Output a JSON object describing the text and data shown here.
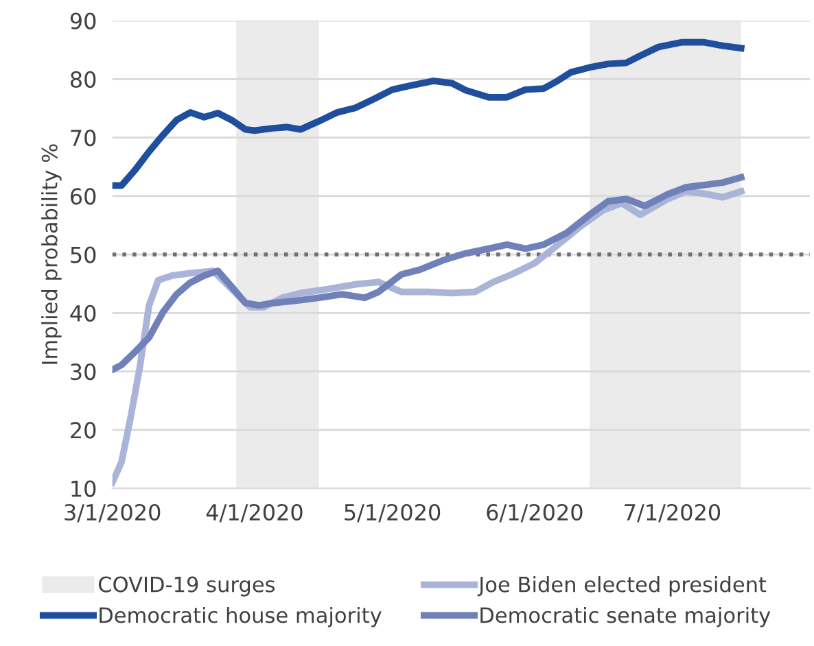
{
  "chart_data": {
    "type": "line",
    "ylabel": "Implied probability %",
    "xlim": [
      "2020-03-01",
      "2020-07-31"
    ],
    "ylim": [
      10,
      90
    ],
    "xticks": [
      {
        "value": "2020-03-01",
        "label": "3/1/2020"
      },
      {
        "value": "2020-04-01",
        "label": "4/1/2020"
      },
      {
        "value": "2020-05-01",
        "label": "5/1/2020"
      },
      {
        "value": "2020-06-01",
        "label": "6/1/2020"
      },
      {
        "value": "2020-07-01",
        "label": "7/1/2020"
      }
    ],
    "yticks": [
      10,
      20,
      30,
      40,
      50,
      60,
      70,
      80,
      90
    ],
    "grid": "y",
    "legend": "bottom",
    "line_style": "solid",
    "marker": "none",
    "series": [
      {
        "name": "Democratic house majority",
        "color": "#1f4e9c",
        "x": [
          "2020-03-01",
          "2020-03-03",
          "2020-03-06",
          "2020-03-09",
          "2020-03-12",
          "2020-03-15",
          "2020-03-18",
          "2020-03-21",
          "2020-03-24",
          "2020-03-27",
          "2020-03-30",
          "2020-04-01",
          "2020-04-05",
          "2020-04-08",
          "2020-04-11",
          "2020-04-15",
          "2020-04-19",
          "2020-04-23",
          "2020-04-27",
          "2020-05-01",
          "2020-05-05",
          "2020-05-10",
          "2020-05-14",
          "2020-05-17",
          "2020-05-22",
          "2020-05-26",
          "2020-05-30",
          "2020-06-03",
          "2020-06-06",
          "2020-06-09",
          "2020-06-13",
          "2020-06-17",
          "2020-06-21",
          "2020-06-24",
          "2020-06-28",
          "2020-07-03",
          "2020-07-08",
          "2020-07-12",
          "2020-07-16"
        ],
        "values": [
          61.8,
          61.8,
          64.5,
          67.6,
          70.4,
          73,
          74.3,
          73.5,
          74.2,
          73,
          71.4,
          71.2,
          71.6,
          71.8,
          71.4,
          72.8,
          74.3,
          75.1,
          76.6,
          78.2,
          78.9,
          79.7,
          79.3,
          78.1,
          76.9,
          76.9,
          78.2,
          78.4,
          79.7,
          81.2,
          82,
          82.6,
          82.8,
          84,
          85.5,
          86.3,
          86.3,
          85.7,
          85.3
        ]
      },
      {
        "name": "Joe Biden elected president",
        "color": "#a9b4d8",
        "x": [
          "2020-03-01",
          "2020-03-03",
          "2020-03-05",
          "2020-03-07",
          "2020-03-09",
          "2020-03-11",
          "2020-03-14",
          "2020-03-18",
          "2020-03-23",
          "2020-03-27",
          "2020-03-31",
          "2020-04-03",
          "2020-04-07",
          "2020-04-11",
          "2020-04-17",
          "2020-04-23",
          "2020-04-28",
          "2020-05-03",
          "2020-05-09",
          "2020-05-14",
          "2020-05-19",
          "2020-05-23",
          "2020-05-27",
          "2020-06-01",
          "2020-06-06",
          "2020-06-11",
          "2020-06-16",
          "2020-06-20",
          "2020-06-24",
          "2020-06-30",
          "2020-07-04",
          "2020-07-08",
          "2020-07-12",
          "2020-07-16"
        ],
        "values": [
          11,
          14.5,
          22.2,
          30.8,
          41.3,
          45.6,
          46.4,
          46.8,
          47.2,
          44.1,
          41,
          41,
          42.6,
          43.4,
          44.1,
          44.9,
          45.3,
          43.6,
          43.6,
          43.4,
          43.6,
          45.3,
          46.6,
          48.5,
          51.6,
          54.8,
          57.6,
          58.8,
          56.8,
          59.5,
          60.8,
          60.4,
          59.8,
          60.8
        ]
      },
      {
        "name": "Democratic senate majority",
        "color": "#7080b8",
        "x": [
          "2020-03-01",
          "2020-03-03",
          "2020-03-06",
          "2020-03-09",
          "2020-03-12",
          "2020-03-15",
          "2020-03-18",
          "2020-03-21",
          "2020-03-24",
          "2020-03-27",
          "2020-03-30",
          "2020-04-02",
          "2020-04-05",
          "2020-04-10",
          "2020-04-15",
          "2020-04-20",
          "2020-04-25",
          "2020-04-28",
          "2020-05-03",
          "2020-05-07",
          "2020-05-12",
          "2020-05-17",
          "2020-05-22",
          "2020-05-26",
          "2020-05-30",
          "2020-06-03",
          "2020-06-08",
          "2020-06-13",
          "2020-06-17",
          "2020-06-21",
          "2020-06-25",
          "2020-06-30",
          "2020-07-04",
          "2020-07-08",
          "2020-07-12",
          "2020-07-16"
        ],
        "values": [
          30.3,
          31.1,
          33.4,
          35.8,
          40.1,
          43.2,
          45.2,
          46.4,
          47.2,
          44.5,
          41.7,
          41.3,
          41.7,
          42.1,
          42.6,
          43.2,
          42.6,
          43.6,
          46.6,
          47.4,
          49,
          50.2,
          51,
          51.7,
          51,
          51.7,
          53.7,
          56.8,
          59.1,
          59.5,
          58.3,
          60.3,
          61.5,
          61.9,
          62.3,
          63.2
        ]
      }
    ],
    "bands": [
      {
        "axis": "x",
        "from": "2020-03-28",
        "to": "2020-04-15",
        "label": "COVID-19 surges",
        "color": "#ebebeb"
      },
      {
        "axis": "x",
        "from": "2020-06-13",
        "to": "2020-07-16",
        "color": "#ebebeb"
      }
    ],
    "ref_lines": [
      {
        "axis": "y",
        "value": 50,
        "color": "#707070",
        "line_style": "dotted"
      }
    ]
  }
}
